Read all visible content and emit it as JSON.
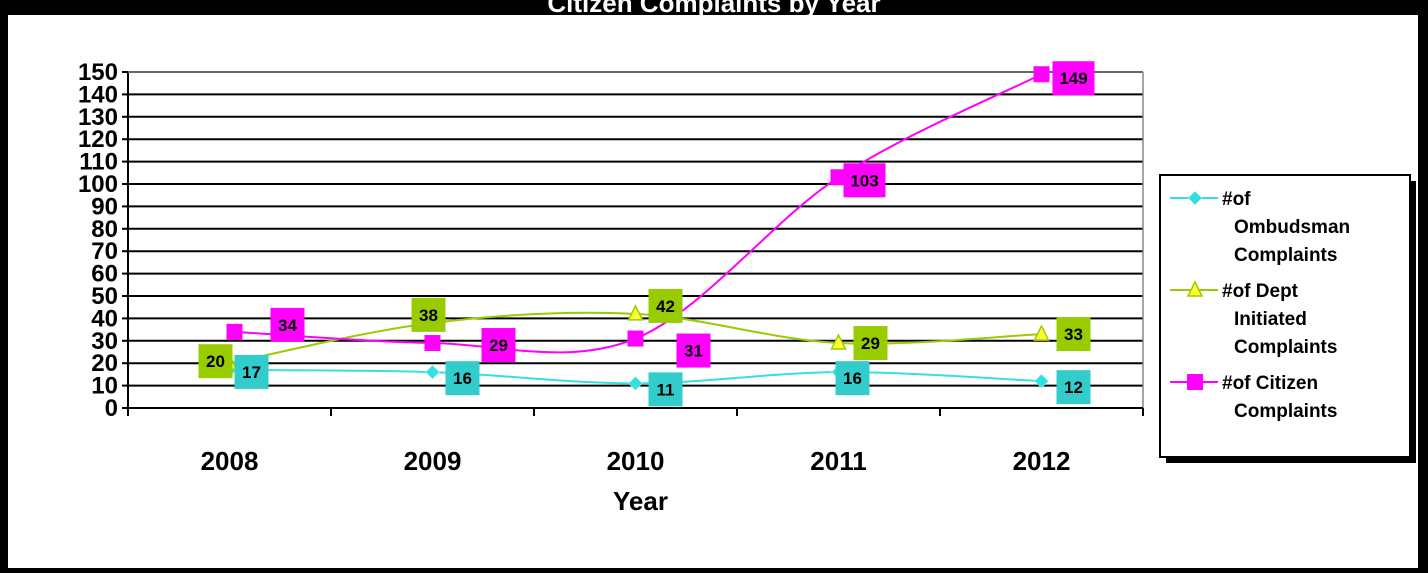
{
  "chart_data": {
    "type": "line",
    "title": "Citizen Complaints by Year",
    "xlabel": "Year",
    "ylabel": "",
    "ylim": [
      0,
      150
    ],
    "ytick_step": 10,
    "categories": [
      "2008",
      "2009",
      "2010",
      "2011",
      "2012"
    ],
    "series": [
      {
        "name": "#of Ombudsman Complaints",
        "values": [
          17,
          16,
          11,
          16,
          12
        ],
        "color": "#33e0e0",
        "marker": "diamond",
        "label_color": "#33cccc"
      },
      {
        "name": "#of Dept Initiated Complaints",
        "values": [
          20,
          38,
          42,
          29,
          33
        ],
        "color": "#99cc00",
        "marker": "triangle",
        "label_color": "#99cc00"
      },
      {
        "name": "#of Citizen Complaints",
        "values": [
          34,
          29,
          31,
          103,
          149
        ],
        "color": "#ff00ff",
        "marker": "square",
        "label_color": "#ff00ff"
      }
    ],
    "legend_position": "right",
    "grid": true
  }
}
